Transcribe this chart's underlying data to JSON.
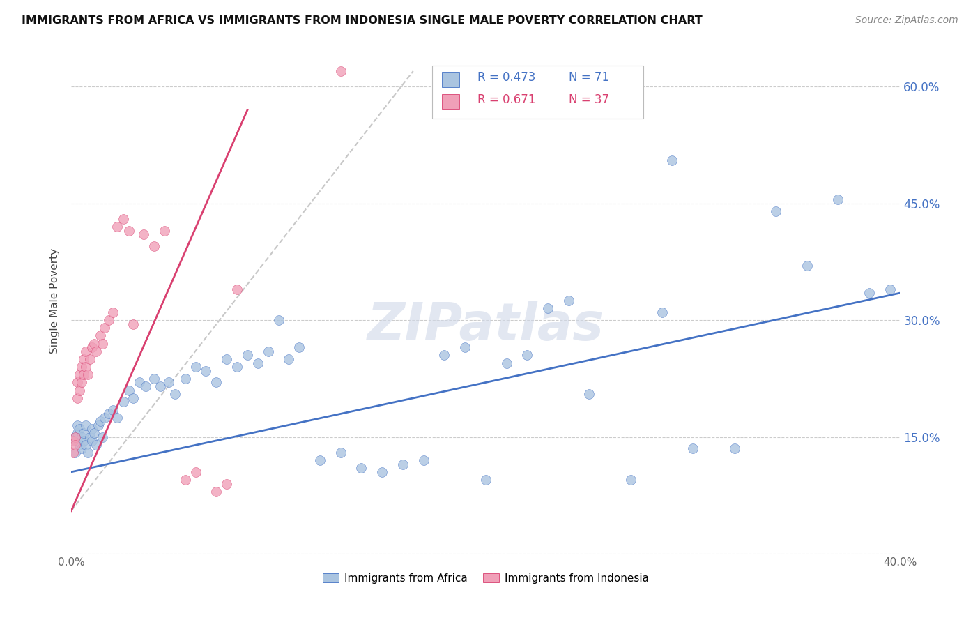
{
  "title": "IMMIGRANTS FROM AFRICA VS IMMIGRANTS FROM INDONESIA SINGLE MALE POVERTY CORRELATION CHART",
  "source": "Source: ZipAtlas.com",
  "ylabel": "Single Male Poverty",
  "xlim": [
    0.0,
    0.4
  ],
  "ylim": [
    0.0,
    0.65
  ],
  "ytick_positions": [
    0.0,
    0.15,
    0.3,
    0.45,
    0.6
  ],
  "right_ytick_labels": [
    "",
    "15.0%",
    "30.0%",
    "45.0%",
    "60.0%"
  ],
  "xtick_positions": [
    0.0,
    0.05,
    0.1,
    0.15,
    0.2,
    0.25,
    0.3,
    0.35,
    0.4
  ],
  "xtick_labels": [
    "0.0%",
    "",
    "",
    "",
    "",
    "",
    "",
    "",
    "40.0%"
  ],
  "legend_r1": "R = 0.473",
  "legend_n1": "N = 71",
  "legend_r2": "R = 0.671",
  "legend_n2": "N = 37",
  "color_africa": "#aac4e0",
  "color_indonesia": "#f0a0b8",
  "color_africa_line": "#4472c4",
  "color_indonesia_line": "#d94070",
  "color_dashed": "#c8c8c8",
  "watermark": "ZIPatlas",
  "africa_x": [
    0.001,
    0.002,
    0.002,
    0.003,
    0.003,
    0.004,
    0.004,
    0.005,
    0.005,
    0.006,
    0.006,
    0.007,
    0.007,
    0.008,
    0.009,
    0.01,
    0.01,
    0.011,
    0.012,
    0.013,
    0.014,
    0.015,
    0.016,
    0.018,
    0.02,
    0.022,
    0.025,
    0.028,
    0.03,
    0.033,
    0.036,
    0.04,
    0.043,
    0.047,
    0.05,
    0.055,
    0.06,
    0.065,
    0.07,
    0.075,
    0.08,
    0.085,
    0.09,
    0.095,
    0.1,
    0.105,
    0.11,
    0.12,
    0.13,
    0.14,
    0.15,
    0.16,
    0.17,
    0.18,
    0.19,
    0.2,
    0.21,
    0.22,
    0.23,
    0.24,
    0.25,
    0.27,
    0.285,
    0.3,
    0.32,
    0.34,
    0.355,
    0.37,
    0.385,
    0.395,
    0.29
  ],
  "africa_y": [
    0.145,
    0.15,
    0.13,
    0.155,
    0.165,
    0.14,
    0.16,
    0.15,
    0.135,
    0.145,
    0.155,
    0.14,
    0.165,
    0.13,
    0.15,
    0.145,
    0.16,
    0.155,
    0.14,
    0.165,
    0.17,
    0.15,
    0.175,
    0.18,
    0.185,
    0.175,
    0.195,
    0.21,
    0.2,
    0.22,
    0.215,
    0.225,
    0.215,
    0.22,
    0.205,
    0.225,
    0.24,
    0.235,
    0.22,
    0.25,
    0.24,
    0.255,
    0.245,
    0.26,
    0.3,
    0.25,
    0.265,
    0.12,
    0.13,
    0.11,
    0.105,
    0.115,
    0.12,
    0.255,
    0.265,
    0.095,
    0.245,
    0.255,
    0.315,
    0.325,
    0.205,
    0.095,
    0.31,
    0.135,
    0.135,
    0.44,
    0.37,
    0.455,
    0.335,
    0.34,
    0.505
  ],
  "indonesia_x": [
    0.001,
    0.001,
    0.002,
    0.002,
    0.003,
    0.003,
    0.004,
    0.004,
    0.005,
    0.005,
    0.006,
    0.006,
    0.007,
    0.007,
    0.008,
    0.009,
    0.01,
    0.011,
    0.012,
    0.014,
    0.015,
    0.016,
    0.018,
    0.02,
    0.022,
    0.025,
    0.028,
    0.03,
    0.035,
    0.04,
    0.045,
    0.055,
    0.06,
    0.07,
    0.075,
    0.08,
    0.13
  ],
  "indonesia_y": [
    0.145,
    0.13,
    0.15,
    0.14,
    0.22,
    0.2,
    0.21,
    0.23,
    0.24,
    0.22,
    0.25,
    0.23,
    0.24,
    0.26,
    0.23,
    0.25,
    0.265,
    0.27,
    0.26,
    0.28,
    0.27,
    0.29,
    0.3,
    0.31,
    0.42,
    0.43,
    0.415,
    0.295,
    0.41,
    0.395,
    0.415,
    0.095,
    0.105,
    0.08,
    0.09,
    0.34,
    0.62
  ],
  "africa_line_x": [
    0.0,
    0.4
  ],
  "africa_line_y": [
    0.105,
    0.335
  ],
  "indonesia_line_x": [
    0.0,
    0.085
  ],
  "indonesia_line_y": [
    0.055,
    0.57
  ],
  "dashed_line_x": [
    0.0,
    0.165
  ],
  "dashed_line_y": [
    0.055,
    0.62
  ]
}
